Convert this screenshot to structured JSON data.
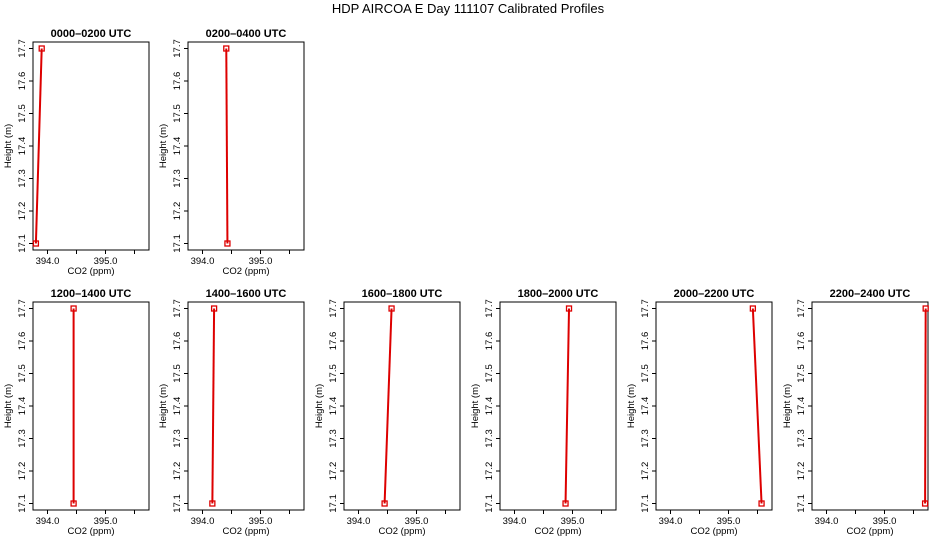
{
  "page": {
    "title": "HDP AIRCOA E  Day 111107  Calibrated Profiles"
  },
  "colors": {
    "profile": "#dd0000",
    "axis": "#000000"
  },
  "chart_data": [
    {
      "type": "line",
      "title": "0000–0200 UTC",
      "xlabel": "CO2 (ppm)",
      "ylabel": "Height (m)",
      "xlim": [
        393.75,
        395.75
      ],
      "ylim": [
        17.08,
        17.72
      ],
      "xticks": [
        "394.0",
        "395.0"
      ],
      "yticks": [
        "17.1",
        "17.2",
        "17.3",
        "17.4",
        "17.5",
        "17.6",
        "17.7"
      ],
      "series": [
        {
          "x": [
            393.8,
            393.9
          ],
          "y": [
            17.1,
            17.7
          ]
        }
      ]
    },
    {
      "type": "line",
      "title": "0200–0400 UTC",
      "xlabel": "CO2 (ppm)",
      "ylabel": "Height (m)",
      "xlim": [
        393.75,
        395.75
      ],
      "ylim": [
        17.08,
        17.72
      ],
      "xticks": [
        "394.0",
        "395.0"
      ],
      "yticks": [
        "17.1",
        "17.2",
        "17.3",
        "17.4",
        "17.5",
        "17.6",
        "17.7"
      ],
      "series": [
        {
          "x": [
            394.43,
            394.41
          ],
          "y": [
            17.1,
            17.7
          ]
        }
      ]
    },
    {
      "type": "line",
      "title": "1200–1400 UTC",
      "xlabel": "CO2 (ppm)",
      "ylabel": "Height (m)",
      "xlim": [
        393.75,
        395.75
      ],
      "ylim": [
        17.08,
        17.72
      ],
      "xticks": [
        "394.0",
        "395.0"
      ],
      "yticks": [
        "17.1",
        "17.2",
        "17.3",
        "17.4",
        "17.5",
        "17.6",
        "17.7"
      ],
      "series": [
        {
          "x": [
            394.45,
            394.45
          ],
          "y": [
            17.1,
            17.7
          ]
        }
      ]
    },
    {
      "type": "line",
      "title": "1400–1600 UTC",
      "xlabel": "CO2 (ppm)",
      "ylabel": "Height (m)",
      "xlim": [
        393.75,
        395.75
      ],
      "ylim": [
        17.08,
        17.72
      ],
      "xticks": [
        "394.0",
        "395.0"
      ],
      "yticks": [
        "17.1",
        "17.2",
        "17.3",
        "17.4",
        "17.5",
        "17.6",
        "17.7"
      ],
      "series": [
        {
          "x": [
            394.17,
            394.2
          ],
          "y": [
            17.1,
            17.7
          ]
        }
      ]
    },
    {
      "type": "line",
      "title": "1600–1800 UTC",
      "xlabel": "CO2 (ppm)",
      "ylabel": "Height (m)",
      "xlim": [
        393.75,
        395.75
      ],
      "ylim": [
        17.08,
        17.72
      ],
      "xticks": [
        "394.0",
        "395.0"
      ],
      "yticks": [
        "17.1",
        "17.2",
        "17.3",
        "17.4",
        "17.5",
        "17.6",
        "17.7"
      ],
      "series": [
        {
          "x": [
            394.45,
            394.57
          ],
          "y": [
            17.1,
            17.7
          ]
        }
      ]
    },
    {
      "type": "line",
      "title": "1800–2000 UTC",
      "xlabel": "CO2 (ppm)",
      "ylabel": "Height (m)",
      "xlim": [
        393.75,
        395.75
      ],
      "ylim": [
        17.08,
        17.72
      ],
      "xticks": [
        "394.0",
        "395.0"
      ],
      "yticks": [
        "17.1",
        "17.2",
        "17.3",
        "17.4",
        "17.5",
        "17.6",
        "17.7"
      ],
      "series": [
        {
          "x": [
            394.88,
            394.94
          ],
          "y": [
            17.1,
            17.7
          ]
        }
      ]
    },
    {
      "type": "line",
      "title": "2000–2200 UTC",
      "xlabel": "CO2 (ppm)",
      "ylabel": "Height (m)",
      "xlim": [
        393.75,
        395.75
      ],
      "ylim": [
        17.08,
        17.72
      ],
      "xticks": [
        "394.0",
        "395.0"
      ],
      "yticks": [
        "17.1",
        "17.2",
        "17.3",
        "17.4",
        "17.5",
        "17.6",
        "17.7"
      ],
      "series": [
        {
          "x": [
            395.57,
            395.42
          ],
          "y": [
            17.1,
            17.7
          ]
        }
      ]
    },
    {
      "type": "line",
      "title": "2200–2400 UTC",
      "xlabel": "CO2 (ppm)",
      "ylabel": "Height (m)",
      "xlim": [
        393.75,
        395.75
      ],
      "ylim": [
        17.08,
        17.72
      ],
      "xticks": [
        "394.0",
        "395.0"
      ],
      "yticks": [
        "17.1",
        "17.2",
        "17.3",
        "17.4",
        "17.5",
        "17.6",
        "17.7"
      ],
      "series": [
        {
          "x": [
            395.7,
            395.71
          ],
          "y": [
            17.1,
            17.7
          ]
        }
      ]
    }
  ]
}
